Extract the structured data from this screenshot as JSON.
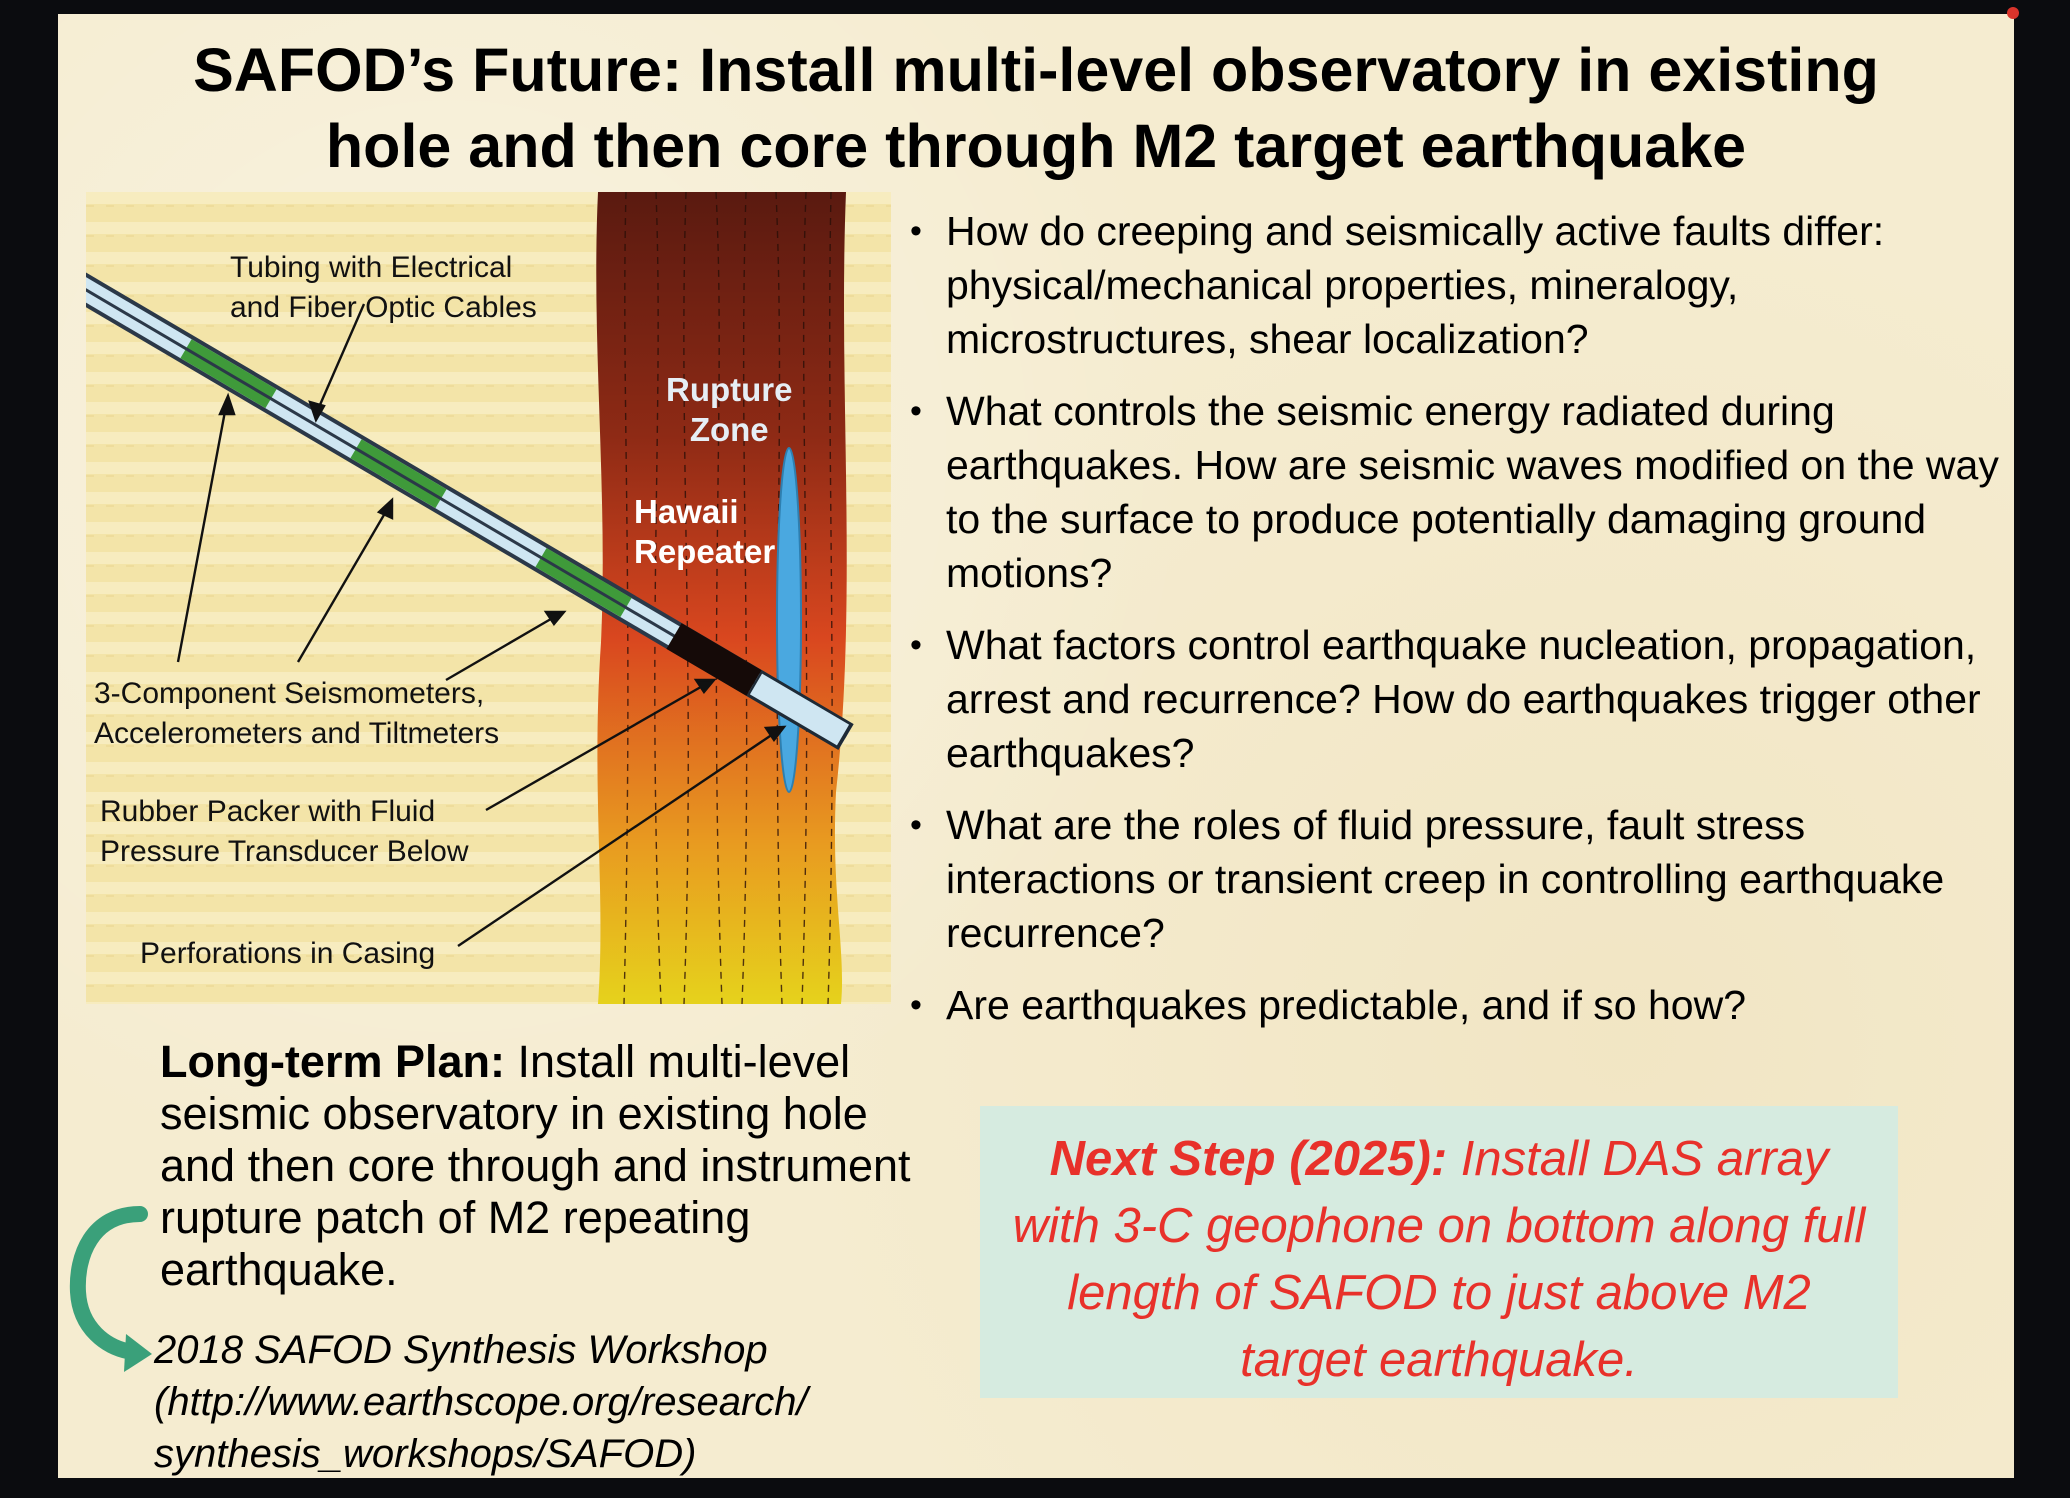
{
  "title": {
    "line1": "SAFOD’s Future: Install multi-level observatory in existing",
    "line2": "hole and then core through M2 target earthquake"
  },
  "figure": {
    "labels": {
      "tubing_line1": "Tubing with Electrical",
      "tubing_line2": "and Fiber Optic Cables",
      "seismometers_line1": "3-Component Seismometers,",
      "seismometers_line2": "Accelerometers and Tiltmeters",
      "packer_line1": "Rubber Packer with Fluid",
      "packer_line2": "Pressure Transducer Below",
      "perforations": "Perforations in Casing",
      "rupture_line1": "Rupture",
      "rupture_line2": "Zone",
      "hawaii_line1": "Hawaii",
      "hawaii_line2": "Repeater"
    },
    "colors": {
      "background": "#f3e4a8",
      "fault_top": "#5a1a10",
      "fault_mid": "#d9471f",
      "fault_bottom": "#e6d21c",
      "rupture_zone": "#4aa8e0",
      "sensor_green": "#3f9a3a",
      "tube_light": "#cfe6f2"
    }
  },
  "bullets": [
    "How do creeping and seismically active faults differ: physical/mechanical properties, mineralogy, microstructures, shear localization?",
    "What controls the seismic energy radiated during earthquakes. How are seismic waves modified on the way to the surface to produce potentially damaging ground motions?",
    "What factors control earthquake nucleation, propagation, arrest and recurrence?  How do earthquakes trigger other earthquakes?",
    "What are the roles of fluid pressure, fault stress interactions or transient creep in controlling earthquake recurrence?",
    "Are earthquakes predictable, and if so how?"
  ],
  "plan": {
    "heading": "Long-term Plan:",
    "text": "Install multi-level seismic observatory in existing hole and then core through and instrument rupture patch of M2 repeating earthquake."
  },
  "workshop": {
    "line1": "2018 SAFOD Synthesis Workshop",
    "line2": "(http://www.earthscope.org/research/",
    "line3": "synthesis_workshops/SAFOD)"
  },
  "next_step": {
    "heading": "Next Step (2025):",
    "text": "Install DAS array with 3-C geophone on bottom along full length of SAFOD to just above M2 target earthquake."
  },
  "colors": {
    "slide_background": "#f5ecd0",
    "next_box_background": "#d6ebe0",
    "next_box_text": "#e8312a",
    "curved_arrow": "#3aa07a"
  }
}
